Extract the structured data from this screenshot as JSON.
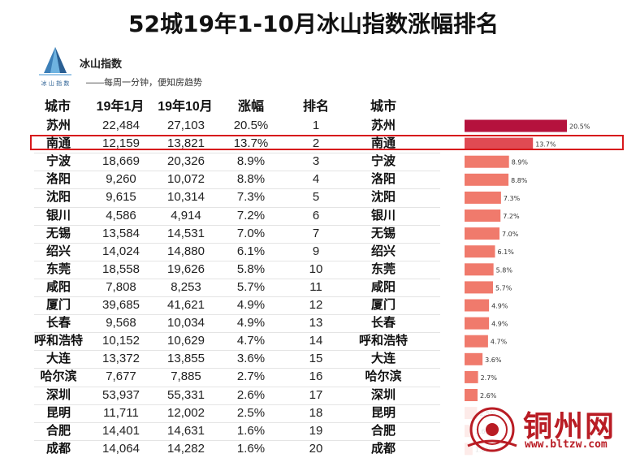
{
  "title": "52城19年1-10月冰山指数涨幅排名",
  "brand": {
    "name": "冰山指数",
    "slogan": "——每周一分钟，便知房趋势",
    "logo_text": "冰 山 指 数",
    "logo_icon": "iceberg-icon"
  },
  "columns": {
    "city": "城市",
    "jan": "19年1月",
    "oct": "19年10月",
    "change": "涨幅",
    "rank": "排名",
    "city2": "城市"
  },
  "highlight_city": "南通",
  "colors": {
    "bar_top": "#b5123d",
    "bar_second": "#e04a53",
    "bar_rest": "#f07a6c",
    "highlight_border": "#d7191c",
    "watermark": "#b91c24"
  },
  "chart_data": {
    "type": "table",
    "bar_type": "bar",
    "orientation": "horizontal",
    "title": "52城19年1-10月冰山指数涨幅排名",
    "rows": [
      {
        "city": "苏州",
        "jan": "22,484",
        "oct": "27,103",
        "change": "20.5%",
        "rank": "1",
        "pct": 20.5
      },
      {
        "city": "南通",
        "jan": "12,159",
        "oct": "13,821",
        "change": "13.7%",
        "rank": "2",
        "pct": 13.7
      },
      {
        "city": "宁波",
        "jan": "18,669",
        "oct": "20,326",
        "change": "8.9%",
        "rank": "3",
        "pct": 8.9
      },
      {
        "city": "洛阳",
        "jan": "9,260",
        "oct": "10,072",
        "change": "8.8%",
        "rank": "4",
        "pct": 8.8
      },
      {
        "city": "沈阳",
        "jan": "9,615",
        "oct": "10,314",
        "change": "7.3%",
        "rank": "5",
        "pct": 7.3
      },
      {
        "city": "银川",
        "jan": "4,586",
        "oct": "4,914",
        "change": "7.2%",
        "rank": "6",
        "pct": 7.2
      },
      {
        "city": "无锡",
        "jan": "13,584",
        "oct": "14,531",
        "change": "7.0%",
        "rank": "7",
        "pct": 7.0
      },
      {
        "city": "绍兴",
        "jan": "14,024",
        "oct": "14,880",
        "change": "6.1%",
        "rank": "9",
        "pct": 6.1
      },
      {
        "city": "东莞",
        "jan": "18,558",
        "oct": "19,626",
        "change": "5.8%",
        "rank": "10",
        "pct": 5.8
      },
      {
        "city": "咸阳",
        "jan": "7,808",
        "oct": "8,253",
        "change": "5.7%",
        "rank": "11",
        "pct": 5.7
      },
      {
        "city": "厦门",
        "jan": "39,685",
        "oct": "41,621",
        "change": "4.9%",
        "rank": "12",
        "pct": 4.9
      },
      {
        "city": "长春",
        "jan": "9,568",
        "oct": "10,034",
        "change": "4.9%",
        "rank": "13",
        "pct": 4.9
      },
      {
        "city": "呼和浩特",
        "jan": "10,152",
        "oct": "10,629",
        "change": "4.7%",
        "rank": "14",
        "pct": 4.7
      },
      {
        "city": "大连",
        "jan": "13,372",
        "oct": "13,855",
        "change": "3.6%",
        "rank": "15",
        "pct": 3.6
      },
      {
        "city": "哈尔滨",
        "jan": "7,677",
        "oct": "7,885",
        "change": "2.7%",
        "rank": "16",
        "pct": 2.7
      },
      {
        "city": "深圳",
        "jan": "53,937",
        "oct": "55,331",
        "change": "2.6%",
        "rank": "17",
        "pct": 2.6
      },
      {
        "city": "昆明",
        "jan": "11,711",
        "oct": "12,002",
        "change": "2.5%",
        "rank": "18",
        "pct": 2.5
      },
      {
        "city": "合肥",
        "jan": "14,401",
        "oct": "14,631",
        "change": "1.6%",
        "rank": "19",
        "pct": 1.6
      },
      {
        "city": "成都",
        "jan": "14,064",
        "oct": "14,282",
        "change": "1.6%",
        "rank": "20",
        "pct": 1.6
      }
    ]
  },
  "watermark": {
    "name": "铜州网",
    "url": "www.bltzw.com",
    "icon": "seal-logo-icon"
  }
}
